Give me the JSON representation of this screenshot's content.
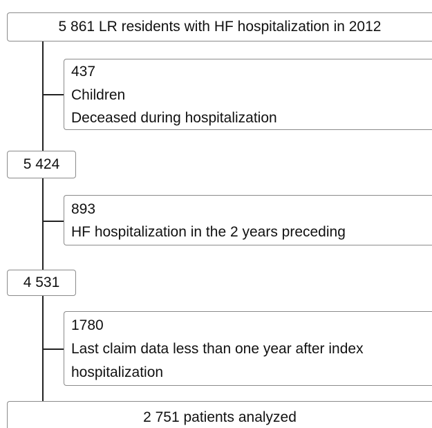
{
  "nodes": [
    {
      "label": "5 861 LR residents with HF hospitalization in 2012"
    },
    {
      "lines": [
        "437",
        "Children",
        "Deceased during hospitalization"
      ]
    },
    {
      "label": "5 424"
    },
    {
      "lines": [
        "893",
        "HF hospitalization in the 2 years preceding"
      ]
    },
    {
      "label": "4 531"
    },
    {
      "lines": [
        "1780",
        "Last claim data less than one year after index",
        "hospitalization"
      ]
    },
    {
      "label": "2 751 patients analyzed"
    }
  ]
}
